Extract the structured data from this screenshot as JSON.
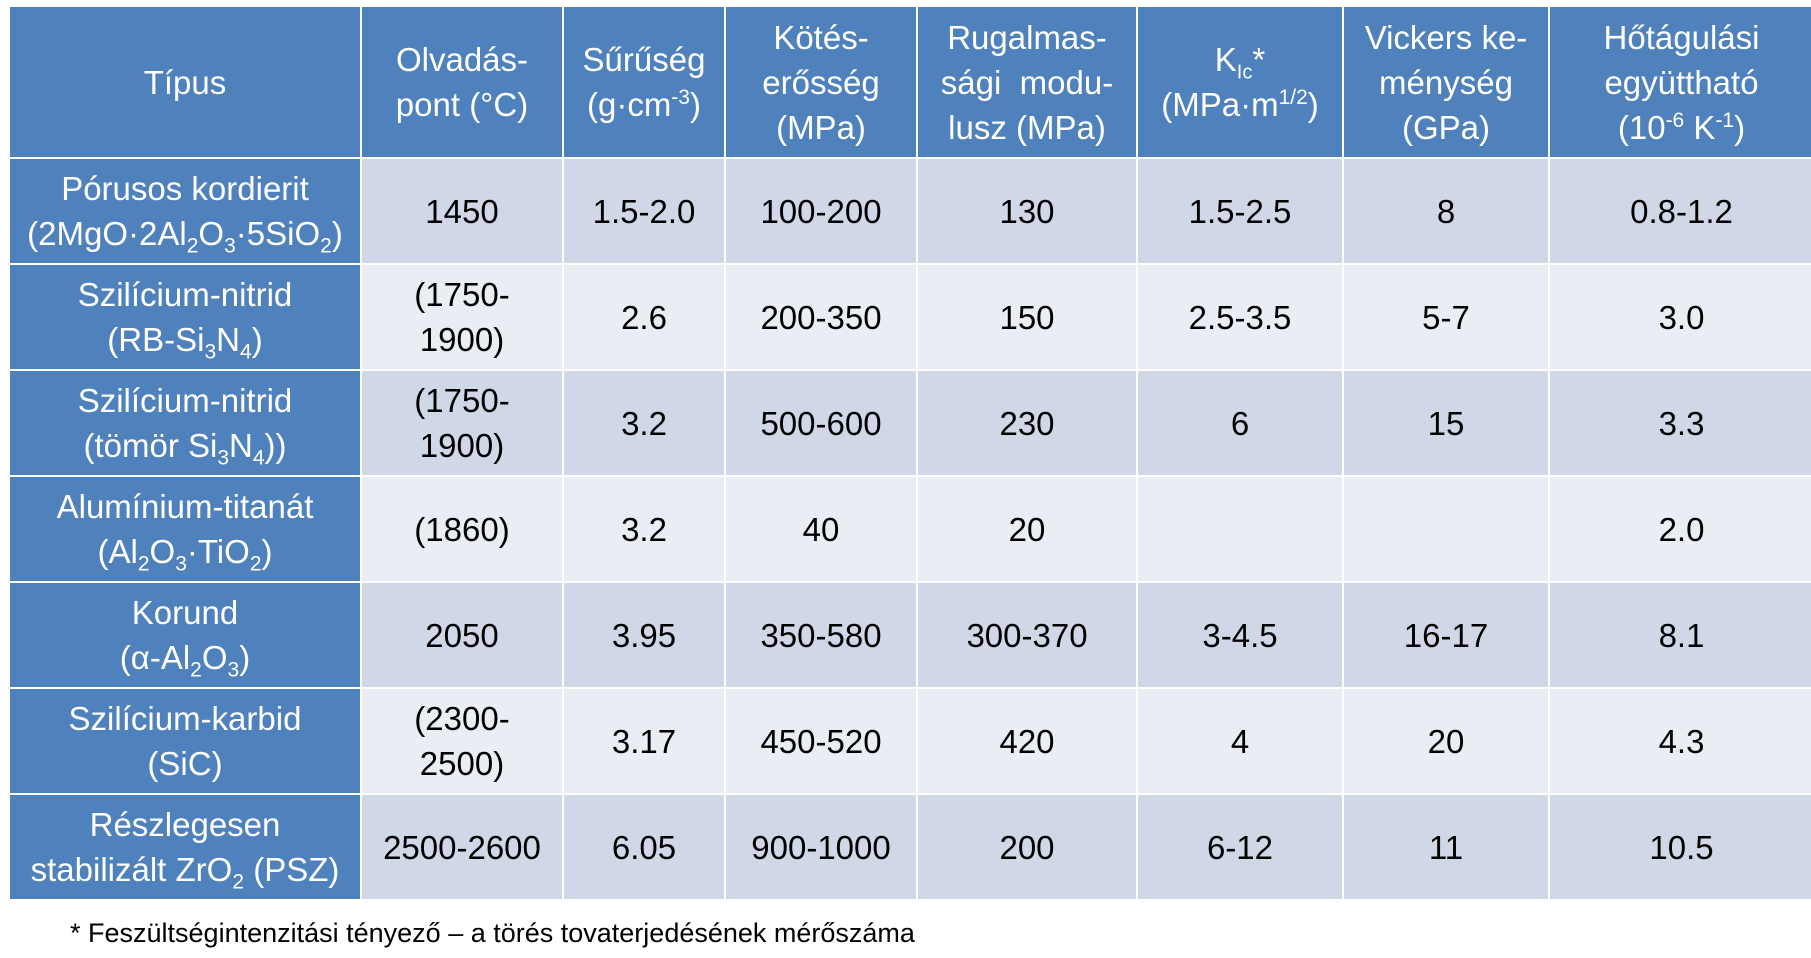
{
  "table": {
    "headers": [
      {
        "id": "type",
        "lines": [
          "Típus"
        ]
      },
      {
        "id": "melting",
        "lines": [
          "Olvadás-",
          "pont (°C)"
        ]
      },
      {
        "id": "density",
        "lines": [
          "Sűrűség",
          "(g·cm",
          "-3",
          ")"
        ]
      },
      {
        "id": "bond",
        "lines": [
          "Kötés-",
          "erősség",
          "(MPa)"
        ]
      },
      {
        "id": "modulus",
        "lines": [
          "Rugalmas-",
          "sági  modu-",
          "lusz (MPa)"
        ]
      },
      {
        "id": "kic",
        "lines": [
          "K",
          "Ic",
          "*",
          "(MPa·m",
          "1/2",
          ")"
        ]
      },
      {
        "id": "vickers",
        "lines": [
          "Vickers ke-",
          "ménység",
          "(GPa)"
        ]
      },
      {
        "id": "expansion",
        "lines": [
          "Hőtágulási",
          "együttható",
          "(10",
          "-6",
          " K",
          "-1",
          ")"
        ]
      }
    ],
    "rows": [
      {
        "type": [
          "Pórusos kordierit",
          "(2MgO·2Al",
          "2",
          "O",
          "3",
          "·5SiO",
          "2",
          ")"
        ],
        "values": [
          "1450",
          "1.5-2.0",
          "100-200",
          "130",
          "1.5-2.5",
          "8",
          "0.8-1.2"
        ]
      },
      {
        "type": [
          "Szilícium-nitrid",
          "(RB-Si",
          "3",
          "N",
          "4",
          ")"
        ],
        "values": [
          "(1750-",
          "1900)",
          "2.6",
          "200-350",
          "150",
          "2.5-3.5",
          "5-7",
          "3.0"
        ]
      },
      {
        "type": [
          "Szilícium-nitrid",
          "(tömör Si",
          "3",
          "N",
          "4",
          "))"
        ],
        "values": [
          "(1750-",
          "1900)",
          "3.2",
          "500-600",
          "230",
          "6",
          "15",
          "3.3"
        ]
      },
      {
        "type": [
          "Alumínium-titanát",
          "(Al",
          "2",
          "O",
          "3",
          "·TiO",
          "2",
          ")"
        ],
        "values": [
          "(1860)",
          "3.2",
          "40",
          "20",
          "",
          "",
          "2.0"
        ]
      },
      {
        "type": [
          "Korund",
          "(α-Al",
          "2",
          "O",
          "3",
          ")"
        ],
        "values": [
          "2050",
          "3.95",
          "350-580",
          "300-370",
          "3-4.5",
          "16-17",
          "8.1"
        ]
      },
      {
        "type": [
          "Szilícium-karbid",
          "(SiC)"
        ],
        "values": [
          "(2300-",
          "2500)",
          "3.17",
          "450-520",
          "420",
          "4",
          "20",
          "4.3"
        ]
      },
      {
        "type": [
          "Részlegesen",
          "stabilizált ZrO",
          "2",
          " (PSZ)"
        ],
        "values": [
          "2500-2600",
          "6.05",
          "900-1000",
          "200",
          "6-12",
          "11",
          "10.5"
        ]
      }
    ]
  },
  "footnote": "* Feszültségintenzitási tényező – a törés tovaterjedésének mérőszáma",
  "colors": {
    "header_bg": "#4f81bd",
    "cell_light": "#e9edf4",
    "cell_dark": "#d0d8e8"
  }
}
